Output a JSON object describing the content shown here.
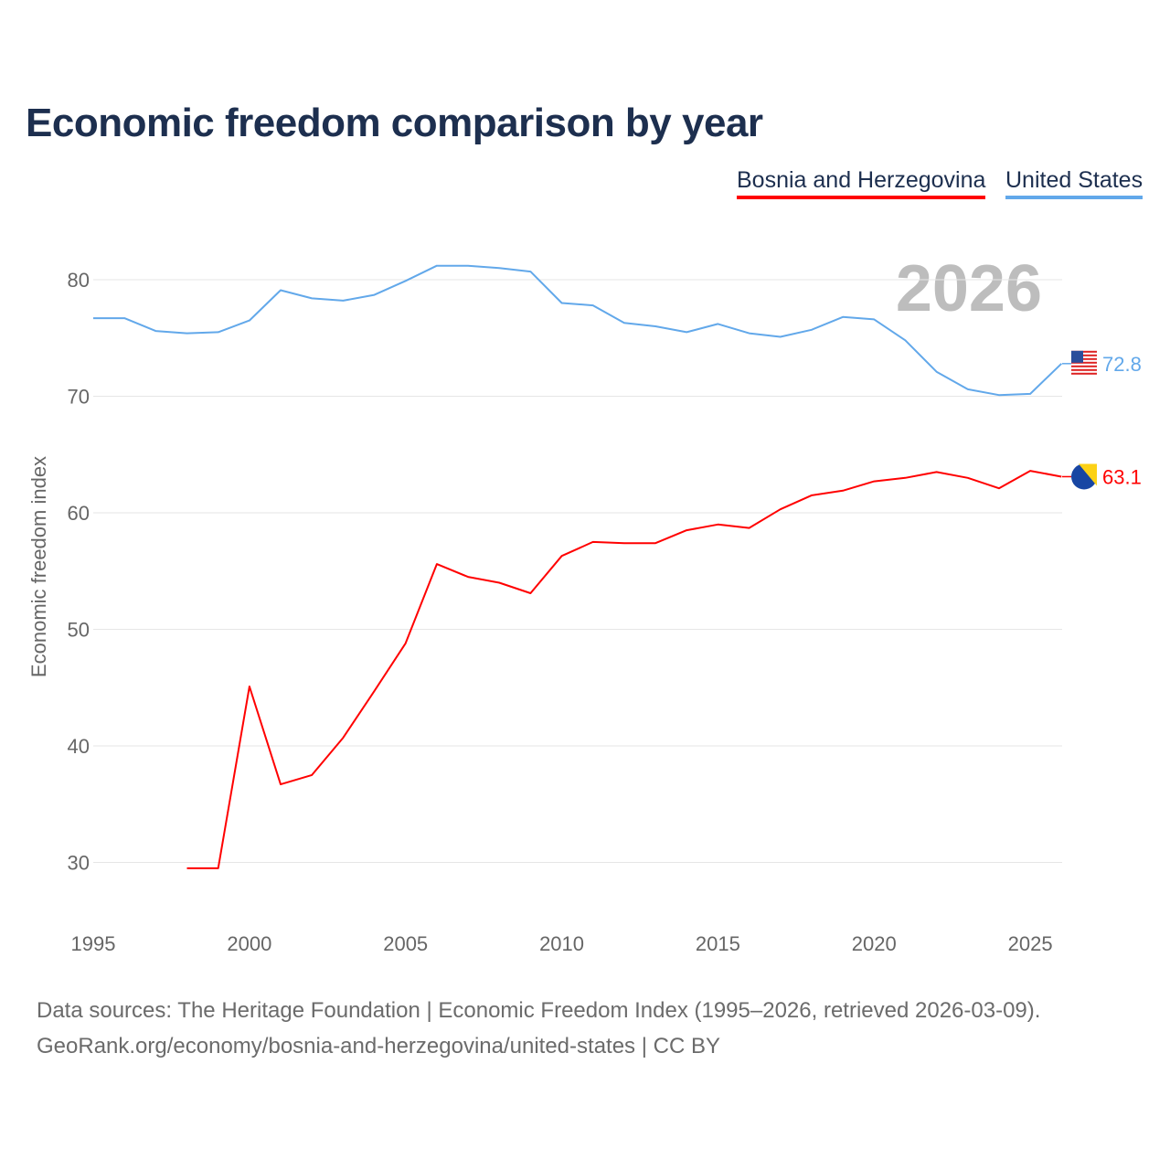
{
  "title": "Economic freedom comparison by year",
  "footer": {
    "line1": "Data sources: The Heritage Foundation | Economic Freedom Index (1995–2026, retrieved 2026-03-09).",
    "line2": "GeoRank.org/economy/bosnia-and-herzegovina/united-states | CC BY"
  },
  "chart_data": {
    "type": "line",
    "title": "Economic freedom comparison by year",
    "ylabel": "Economic freedom index",
    "xlabel": "",
    "year_watermark": "2026",
    "xlim": [
      1995,
      2026
    ],
    "ylim": [
      25,
      85
    ],
    "xticks": [
      "1995",
      "2000",
      "2005",
      "2010",
      "2015",
      "2020",
      "2025"
    ],
    "yticks": [
      "30",
      "40",
      "50",
      "60",
      "70",
      "80"
    ],
    "legend_position": "top-right",
    "series": [
      {
        "name": "Bosnia and Herzegovina",
        "color": "#ff0000",
        "flag": "bosnia-flag-icon",
        "end_label": "63.1",
        "x": [
          1998,
          1999,
          2000,
          2001,
          2002,
          2003,
          2004,
          2005,
          2006,
          2007,
          2008,
          2009,
          2010,
          2011,
          2012,
          2013,
          2014,
          2015,
          2016,
          2017,
          2018,
          2019,
          2020,
          2021,
          2022,
          2023,
          2024,
          2025,
          2026
        ],
        "values": [
          29.5,
          29.5,
          45.1,
          36.7,
          37.5,
          40.7,
          44.7,
          48.8,
          55.6,
          54.5,
          54.0,
          53.1,
          56.3,
          57.5,
          57.4,
          57.4,
          58.5,
          59.0,
          58.7,
          60.3,
          61.5,
          61.9,
          62.7,
          63.0,
          63.5,
          63.0,
          62.1,
          63.6,
          63.1
        ]
      },
      {
        "name": "United States",
        "color": "#62a8ea",
        "flag": "us-flag-icon",
        "end_label": "72.8",
        "x": [
          1995,
          1996,
          1997,
          1998,
          1999,
          2000,
          2001,
          2002,
          2003,
          2004,
          2005,
          2006,
          2007,
          2008,
          2009,
          2010,
          2011,
          2012,
          2013,
          2014,
          2015,
          2016,
          2017,
          2018,
          2019,
          2020,
          2021,
          2022,
          2023,
          2024,
          2025,
          2026
        ],
        "values": [
          76.7,
          76.7,
          75.6,
          75.4,
          75.5,
          76.5,
          79.1,
          78.4,
          78.2,
          78.7,
          79.9,
          81.2,
          81.2,
          81.0,
          80.7,
          78.0,
          77.8,
          76.3,
          76.0,
          75.5,
          76.2,
          75.4,
          75.1,
          75.7,
          76.8,
          76.6,
          74.8,
          72.1,
          70.6,
          70.1,
          70.2,
          72.8
        ]
      }
    ]
  }
}
